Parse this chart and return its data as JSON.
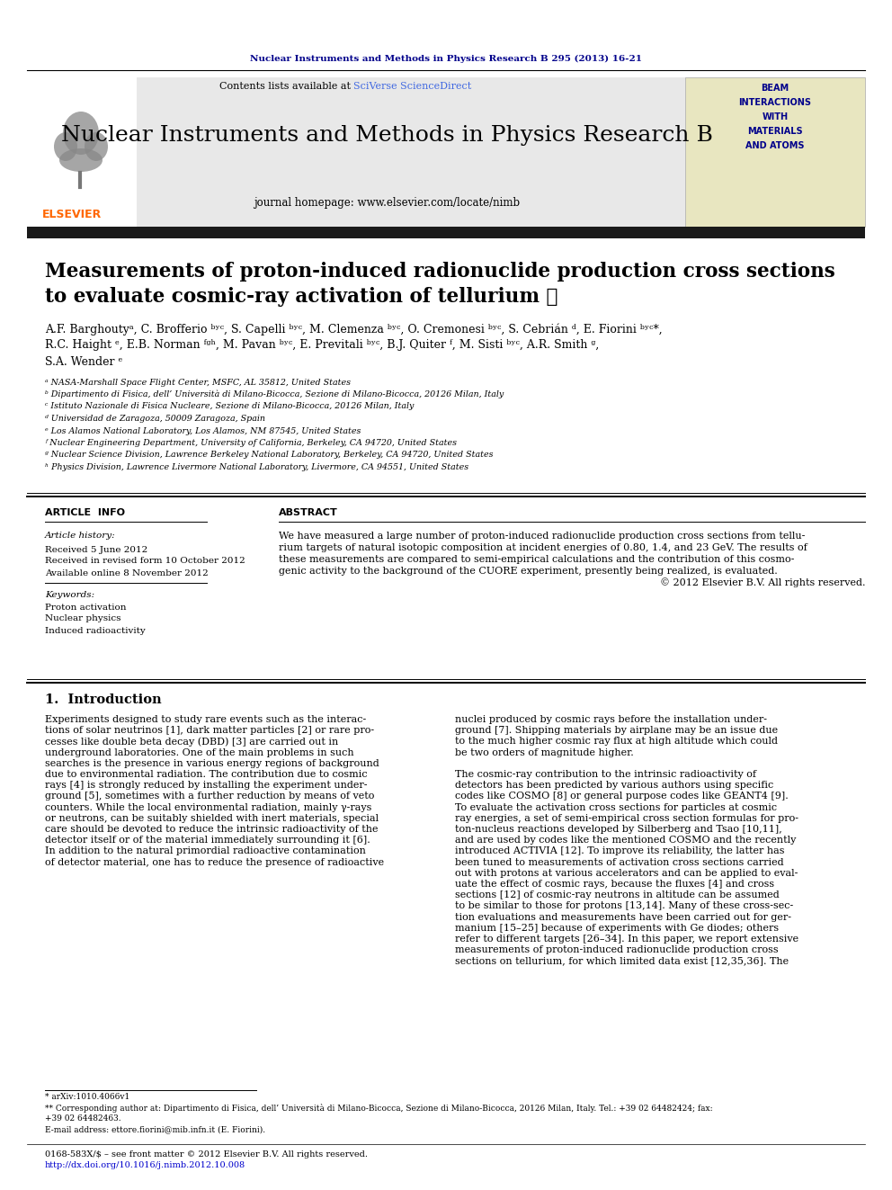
{
  "journal_header_text": "Nuclear Instruments and Methods in Physics Research B 295 (2013) 16-21",
  "journal_header_color": "#00008B",
  "sciverse_color": "#4169E1",
  "journal_name": "Nuclear Instruments and Methods in Physics Research B",
  "journal_homepage": "journal homepage: www.elsevier.com/locate/nimb",
  "title_line1": "Measurements of proton-induced radionuclide production cross sections",
  "title_line2": "to evaluate cosmic-ray activation of tellurium ☆",
  "authors": "A.F. Barghoutyᵃ, C. Brofferio ᵇʸᶜ, S. Capelli ᵇʸᶜ, M. Clemenza ᵇʸᶜ, O. Cremonesi ᵇʸᶜ, S. Cebrián ᵈ, E. Fiorini ᵇʸᶜ*,",
  "authors2": "R.C. Haight ᵉ, E.B. Norman ᶠᵍʰ, M. Pavan ᵇʸᶜ, E. Previtali ᵇʸᶜ, B.J. Quiter ᶠ, M. Sisti ᵇʸᶜ, A.R. Smith ᵍ,",
  "authors3": "S.A. Wender ᵉ",
  "affil_a": "ᵃ NASA-Marshall Space Flight Center, MSFC, AL 35812, United States",
  "affil_b": "ᵇ Dipartimento di Fisica, dell’ Università di Milano-Bicocca, Sezione di Milano-Bicocca, 20126 Milan, Italy",
  "affil_c": "ᶜ Istituto Nazionale di Fisica Nucleare, Sezione di Milano-Bicocca, 20126 Milan, Italy",
  "affil_d": "ᵈ Universidad de Zaragoza, 50009 Zaragoza, Spain",
  "affil_e": "ᵉ Los Alamos National Laboratory, Los Alamos, NM 87545, United States",
  "affil_f": "ᶠ Nuclear Engineering Department, University of California, Berkeley, CA 94720, United States",
  "affil_g": "ᵍ Nuclear Science Division, Lawrence Berkeley National Laboratory, Berkeley, CA 94720, United States",
  "affil_h": "ʰ Physics Division, Lawrence Livermore National Laboratory, Livermore, CA 94551, United States",
  "article_info_title": "ARTICLE  INFO",
  "abstract_title": "ABSTRACT",
  "article_history_label": "Article history:",
  "received_text": "Received 5 June 2012",
  "revised_text": "Received in revised form 10 October 2012",
  "available_text": "Available online 8 November 2012",
  "keywords_label": "Keywords:",
  "keyword1": "Proton activation",
  "keyword2": "Nuclear physics",
  "keyword3": "Induced radioactivity",
  "abstract_text1": "We have measured a large number of proton-induced radionuclide production cross sections from tellu-",
  "abstract_text2": "rium targets of natural isotopic composition at incident energies of 0.80, 1.4, and 23 GeV. The results of",
  "abstract_text3": "these measurements are compared to semi-empirical calculations and the contribution of this cosmo-",
  "abstract_text4": "genic activity to the background of the CUORE experiment, presently being realized, is evaluated.",
  "abstract_copyright": "© 2012 Elsevier B.V. All rights reserved.",
  "section1_title": "1.  Introduction",
  "intro_col1_lines": [
    "Experiments designed to study rare events such as the interac-",
    "tions of solar neutrinos [1], dark matter particles [2] or rare pro-",
    "cesses like double beta decay (DBD) [3] are carried out in",
    "underground laboratories. One of the main problems in such",
    "searches is the presence in various energy regions of background",
    "due to environmental radiation. The contribution due to cosmic",
    "rays [4] is strongly reduced by installing the experiment under-",
    "ground [5], sometimes with a further reduction by means of veto",
    "counters. While the local environmental radiation, mainly γ-rays",
    "or neutrons, can be suitably shielded with inert materials, special",
    "care should be devoted to reduce the intrinsic radioactivity of the",
    "detector itself or of the material immediately surrounding it [6].",
    "In addition to the natural primordial radioactive contamination",
    "of detector material, one has to reduce the presence of radioactive"
  ],
  "intro_col2_lines": [
    "nuclei produced by cosmic rays before the installation under-",
    "ground [7]. Shipping materials by airplane may be an issue due",
    "to the much higher cosmic ray flux at high altitude which could",
    "be two orders of magnitude higher.",
    "",
    "The cosmic-ray contribution to the intrinsic radioactivity of",
    "detectors has been predicted by various authors using specific",
    "codes like COSMO [8] or general purpose codes like GEANT4 [9].",
    "To evaluate the activation cross sections for particles at cosmic",
    "ray energies, a set of semi-empirical cross section formulas for pro-",
    "ton-nucleus reactions developed by Silberberg and Tsao [10,11],",
    "and are used by codes like the mentioned COSMO and the recently",
    "introduced ACTIVIA [12]. To improve its reliability, the latter has",
    "been tuned to measurements of activation cross sections carried",
    "out with protons at various accelerators and can be applied to eval-",
    "uate the effect of cosmic rays, because the fluxes [4] and cross",
    "sections [12] of cosmic-ray neutrons in altitude can be assumed",
    "to be similar to those for protons [13,14]. Many of these cross-sec-",
    "tion evaluations and measurements have been carried out for ger-",
    "manium [15–25] because of experiments with Ge diodes; others",
    "refer to different targets [26–34]. In this paper, we report extensive",
    "measurements of proton-induced radionuclide production cross",
    "sections on tellurium, for which limited data exist [12,35,36]. The"
  ],
  "footnote_line1": "* arXiv:1010.4066v1",
  "footnote_line2": "** Corresponding author at: Dipartimento di Fisica, dell’ Università di Milano-Bicocca, Sezione di Milano-Bicocca, 20126 Milan, Italy. Tel.: +39 02 64482424; fax:",
  "footnote_line2b": "+39 02 64482463.",
  "footnote_line3": "E-mail address: ettore.fiorini@mib.infn.it (E. Fiorini).",
  "issn_text": "0168-583X/$ – see front matter © 2012 Elsevier B.V. All rights reserved.",
  "doi_text": "http://dx.doi.org/10.1016/j.nimb.2012.10.008",
  "doi_color": "#0000CC",
  "bg_color": "#FFFFFF",
  "header_bg": "#E8E8E8",
  "dark_bar_color": "#1A1A1A",
  "elsevier_orange": "#FF6600"
}
